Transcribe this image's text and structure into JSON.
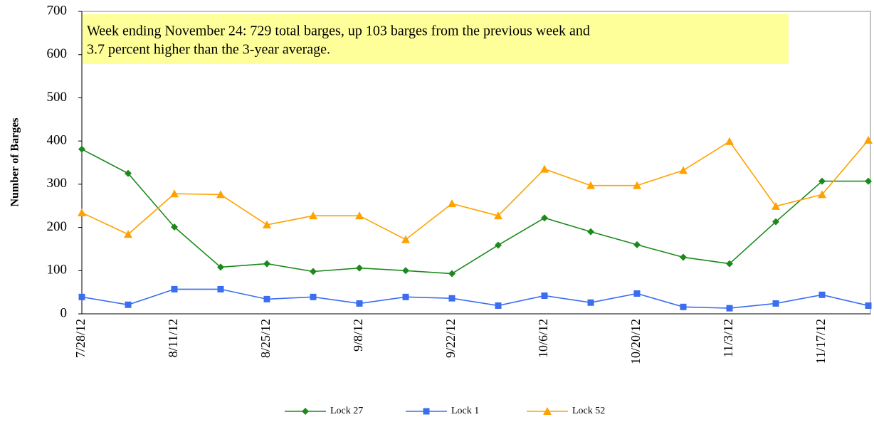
{
  "chart_data": {
    "type": "line",
    "annotation": [
      "Week ending November 24:  729 total barges, up 103 barges from the previous  week and",
      "3.7 percent higher than the 3-year average."
    ],
    "y_label": "Number  of Barges",
    "categories": [
      "7/28/12",
      null,
      "8/11/12",
      null,
      "8/25/12",
      null,
      "9/8/12",
      null,
      "9/22/12",
      null,
      "10/6/12",
      null,
      "10/20/12",
      null,
      "11/3/12",
      null,
      "11/17/12",
      null
    ],
    "series": [
      {
        "name": "Lock 27",
        "color": "#1b8a1b",
        "marker": "diamond",
        "values": [
          381,
          325,
          201,
          108,
          116,
          98,
          106,
          100,
          93,
          159,
          222,
          190,
          160,
          131,
          116,
          213,
          307,
          307
        ]
      },
      {
        "name": "Lock 1",
        "color": "#3a6df0",
        "marker": "square",
        "values": [
          39,
          21,
          57,
          57,
          34,
          39,
          24,
          39,
          36,
          19,
          42,
          26,
          47,
          16,
          13,
          24,
          44,
          19
        ]
      },
      {
        "name": "Lock 52",
        "color": "#ffa200",
        "marker": "triangle",
        "values": [
          234,
          184,
          278,
          276,
          206,
          227,
          227,
          172,
          255,
          227,
          335,
          297,
          297,
          332,
          399,
          249,
          276,
          402
        ]
      }
    ],
    "ylim": [
      0,
      700
    ],
    "yticks": [
      0,
      100,
      200,
      300,
      400,
      500,
      600,
      700
    ],
    "grid": false,
    "legend": "bottom"
  }
}
